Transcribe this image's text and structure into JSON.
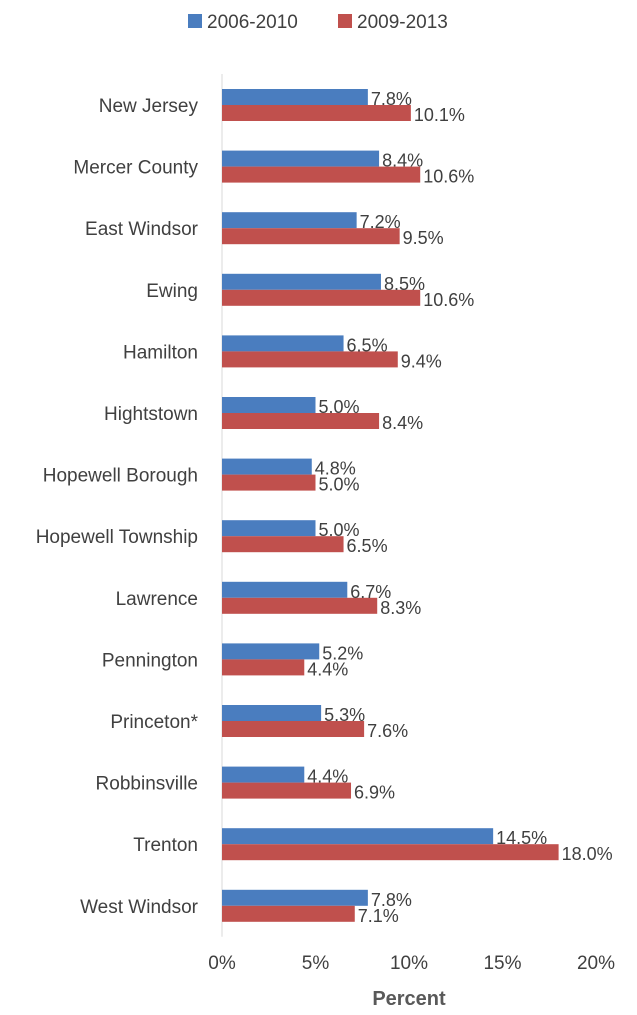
{
  "chart_data": {
    "type": "bar",
    "orientation": "horizontal",
    "categories": [
      "New Jersey",
      "Mercer County",
      "East Windsor",
      "Ewing",
      "Hamilton",
      "Hightstown",
      "Hopewell Borough",
      "Hopewell Township",
      "Lawrence",
      "Pennington",
      "Princeton*",
      "Robbinsville",
      "Trenton",
      "West Windsor"
    ],
    "series": [
      {
        "name": "2006-2010",
        "color": "#4a7dbf",
        "values": [
          7.8,
          8.4,
          7.2,
          8.5,
          6.5,
          5.0,
          4.8,
          5.0,
          6.7,
          5.2,
          5.3,
          4.4,
          14.5,
          7.8
        ],
        "labels": [
          "7.8%",
          "8.4%",
          "7.2%",
          "8.5%",
          "6.5%",
          "5.0%",
          "4.8%",
          "5.0%",
          "6.7%",
          "5.2%",
          "5.3%",
          "4.4%",
          "14.5%",
          "7.8%"
        ]
      },
      {
        "name": "2009-2013",
        "color": "#c0504d",
        "values": [
          10.1,
          10.6,
          9.5,
          10.6,
          9.4,
          8.4,
          5.0,
          6.5,
          8.3,
          4.4,
          7.6,
          6.9,
          18.0,
          7.1
        ],
        "labels": [
          "10.1%",
          "10.6%",
          "9.5%",
          "10.6%",
          "9.4%",
          "8.4%",
          "5.0%",
          "6.5%",
          "8.3%",
          "4.4%",
          "7.6%",
          "6.9%",
          "18.0%",
          "7.1%"
        ]
      }
    ],
    "xlabel": "Percent",
    "xlim": [
      0,
      20
    ],
    "xticks": [
      0,
      5,
      10,
      15,
      20
    ],
    "xtick_labels": [
      "0%",
      "5%",
      "10%",
      "15%",
      "20%"
    ],
    "grid": false,
    "legend": "top-center"
  }
}
